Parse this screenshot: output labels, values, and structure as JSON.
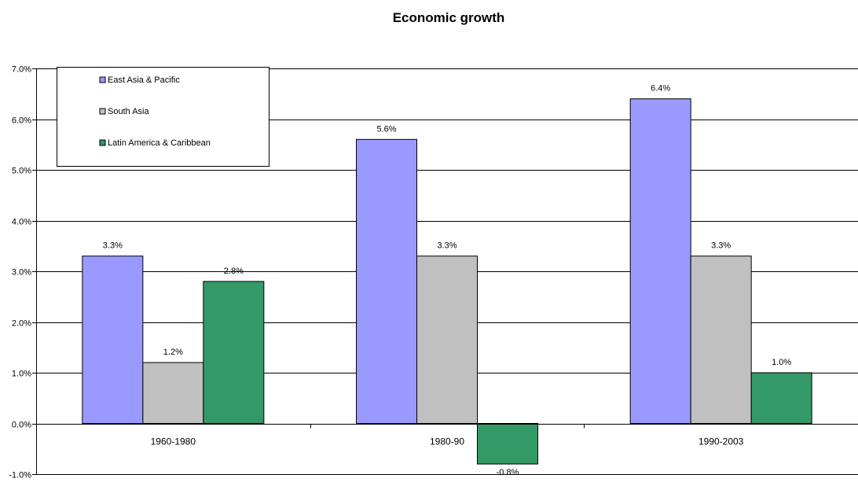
{
  "chart_data": {
    "type": "bar",
    "title": "Economic growth",
    "xlabel": "",
    "ylabel": "",
    "categories": [
      "1960-1980",
      "1980-90",
      "1990-2003"
    ],
    "series": [
      {
        "name": "East Asia & Pacific",
        "values": [
          3.3,
          5.6,
          6.4
        ],
        "labels": [
          "3.3%",
          "5.6%",
          "6.4%"
        ],
        "color": "#9999ff"
      },
      {
        "name": "South Asia",
        "values": [
          1.2,
          3.3,
          3.3
        ],
        "labels": [
          "1.2%",
          "3.3%",
          "3.3%"
        ],
        "color": "#c0c0c0"
      },
      {
        "name": "Latin America & Caribbean",
        "values": [
          2.8,
          -0.8,
          1.0
        ],
        "labels": [
          "2.8%",
          "-0.8%",
          "1.0%"
        ],
        "color": "#339966"
      }
    ],
    "ylim": [
      -1.0,
      7.0
    ],
    "yticks": [
      -1.0,
      0.0,
      1.0,
      2.0,
      3.0,
      4.0,
      5.0,
      6.0,
      7.0
    ],
    "ytick_labels": [
      "-1.0%",
      "0.0%",
      "1.0%",
      "2.0%",
      "3.0%",
      "4.0%",
      "5.0%",
      "6.0%",
      "7.0%"
    ],
    "grid": true,
    "legend": "top-left"
  }
}
